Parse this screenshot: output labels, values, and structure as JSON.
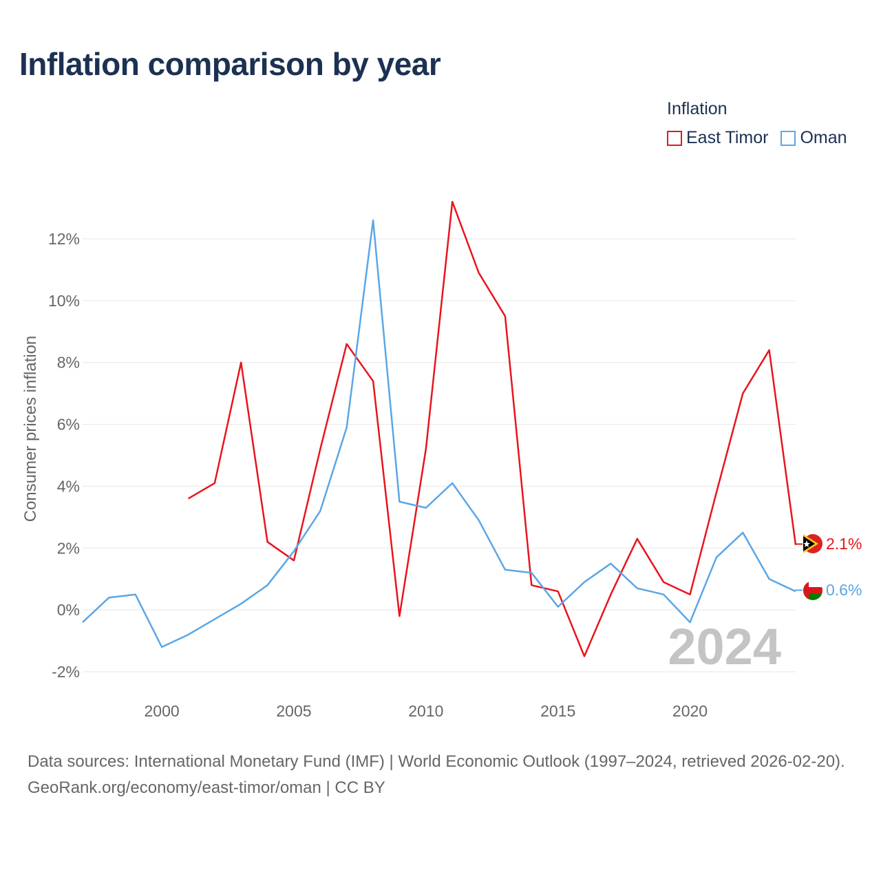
{
  "title": "Inflation comparison by year",
  "legend": {
    "title": "Inflation",
    "items": [
      {
        "label": "East Timor",
        "color": "#e8141c"
      },
      {
        "label": "Oman",
        "color": "#5ba6e5"
      }
    ]
  },
  "year_watermark": "2024",
  "end_labels": {
    "east_timor": "2.1%",
    "oman": "0.6%"
  },
  "footer": {
    "sources": "Data sources: International Monetary Fund (IMF) | World Economic Outlook (1997–2024, retrieved 2026-02-20).",
    "link": "GeoRank.org/economy/east-timor/oman | CC BY"
  },
  "chart_data": {
    "type": "line",
    "title": "Inflation comparison by year",
    "xlabel": "",
    "ylabel": "Consumer prices inflation",
    "xlim": [
      1997,
      2024
    ],
    "ylim": [
      -2.5,
      13.3
    ],
    "xticks": [
      2000,
      2005,
      2010,
      2015,
      2020
    ],
    "yticks": [
      -2,
      0,
      2,
      4,
      6,
      8,
      10,
      12
    ],
    "ytick_labels": [
      "-2%",
      "0%",
      "2%",
      "4%",
      "6%",
      "8%",
      "10%",
      "12%"
    ],
    "grid": true,
    "legend_position": "top-right",
    "series": [
      {
        "name": "East Timor",
        "color": "#e8141c",
        "x": [
          2001,
          2002,
          2003,
          2004,
          2005,
          2006,
          2007,
          2008,
          2009,
          2010,
          2011,
          2012,
          2013,
          2014,
          2015,
          2016,
          2017,
          2018,
          2019,
          2020,
          2021,
          2022,
          2023,
          2024
        ],
        "values": [
          3.6,
          4.1,
          8.0,
          2.2,
          1.6,
          5.2,
          8.6,
          7.4,
          -0.2,
          5.2,
          13.2,
          10.9,
          9.5,
          0.8,
          0.6,
          -1.5,
          0.5,
          2.3,
          0.9,
          0.5,
          3.8,
          7.0,
          8.4,
          2.1
        ]
      },
      {
        "name": "Oman",
        "color": "#5ba6e5",
        "x": [
          1997,
          1998,
          1999,
          2000,
          2001,
          2002,
          2003,
          2004,
          2005,
          2006,
          2007,
          2008,
          2009,
          2010,
          2011,
          2012,
          2013,
          2014,
          2015,
          2016,
          2017,
          2018,
          2019,
          2020,
          2021,
          2022,
          2023,
          2024
        ],
        "values": [
          -0.4,
          0.4,
          0.5,
          -1.2,
          -0.8,
          -0.3,
          0.2,
          0.8,
          1.9,
          3.2,
          5.9,
          12.6,
          3.5,
          3.3,
          4.1,
          2.9,
          1.3,
          1.2,
          0.1,
          0.9,
          1.5,
          0.7,
          0.5,
          -0.4,
          1.7,
          2.5,
          1.0,
          0.6
        ]
      }
    ]
  }
}
